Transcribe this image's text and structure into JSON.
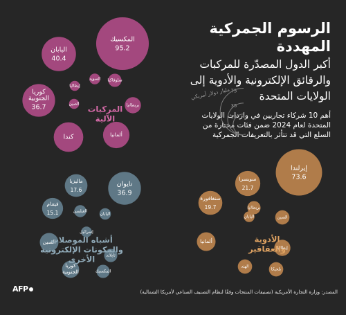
{
  "title": "الرسوم الجمركية المهددة",
  "subtitle": "أكبر الدول المصدّرة للمركبات والرقائق الإلكترونية والأدوية إلى الولايات المتحدة",
  "description": "أهم 10 شركاء تجاريين في واردات الولايات المتحدة لعام 2024 ضمن فئات مختارة من السلع التي قد تتأثر بالتعريفات الجمركية",
  "source": "المصدر: وزارة التجارة الأمريكية (تصنيفات المنتجات وفقًا لنظام التصنيف الصناعي لأمريكا الشمالية)",
  "logo": "AFP",
  "colors": {
    "background": "#262626",
    "vehicles": "#a3487e",
    "chips": "#5f7886",
    "pharma": "#b07c4a",
    "legend_ring": "#7a7a7a"
  },
  "chart_data": {
    "type": "bubble",
    "unit": "مليار دولار أمريكي",
    "legend": {
      "label": "مليار دولار أمريكي",
      "sizes": [
        {
          "label": "75",
          "value": 75
        },
        {
          "label": "35",
          "value": 35
        },
        {
          "label": "15",
          "value": 15
        }
      ]
    },
    "groups": [
      {
        "name": "المركبات الآلية",
        "color": "#a3487e",
        "items": [
          {
            "name": "المكسيك",
            "value": 95.2,
            "value_label": "95.2"
          },
          {
            "name": "اليابان",
            "value": 40.4,
            "value_label": "40.4"
          },
          {
            "name": "كوريا الجنوبية",
            "value": 36.7,
            "value_label": "36.7"
          },
          {
            "name": "كندا",
            "value": 30.0,
            "value_label": ""
          },
          {
            "name": "ألمانيا",
            "value": 24.0,
            "value_label": ""
          },
          {
            "name": "بريطانيا",
            "value": 9.0,
            "value_label": ""
          },
          {
            "name": "سلوفاكيا",
            "value": 6.0,
            "value_label": ""
          },
          {
            "name": "السويد",
            "value": 4.0,
            "value_label": ""
          },
          {
            "name": "إيطاليا",
            "value": 3.5,
            "value_label": ""
          },
          {
            "name": "الصين",
            "value": 3.5,
            "value_label": ""
          }
        ]
      },
      {
        "name": "أشباه الموصلات والمكونات الإلكترونية الأخرى",
        "color": "#5f7886",
        "items": [
          {
            "name": "تايوان",
            "value": 36.9,
            "value_label": "36.9"
          },
          {
            "name": "ماليزيا",
            "value": 17.6,
            "value_label": "17.6"
          },
          {
            "name": "فيتنام",
            "value": 15.1,
            "value_label": "15.1"
          },
          {
            "name": "الصين",
            "value": 12.0,
            "value_label": ""
          },
          {
            "name": "كوريا الجنوبية",
            "value": 10.0,
            "value_label": ""
          },
          {
            "name": "تايلاند",
            "value": 6.0,
            "value_label": ""
          },
          {
            "name": "المكسيك",
            "value": 6.0,
            "value_label": ""
          },
          {
            "name": "الفيليبين",
            "value": 5.0,
            "value_label": ""
          },
          {
            "name": "اليابان",
            "value": 4.5,
            "value_label": ""
          },
          {
            "name": "إسرائيل",
            "value": 4.0,
            "value_label": ""
          }
        ]
      },
      {
        "name": "الأدوية والعقاقير",
        "color": "#b07c4a",
        "items": [
          {
            "name": "إيرلندا",
            "value": 73.6,
            "value_label": "73.6"
          },
          {
            "name": "سويسرا",
            "value": 21.7,
            "value_label": "21.7"
          },
          {
            "name": "سنغافورة",
            "value": 19.7,
            "value_label": "19.7"
          },
          {
            "name": "ألمانيا",
            "value": 12.0,
            "value_label": ""
          },
          {
            "name": "إيطاليا",
            "value": 9.0,
            "value_label": ""
          },
          {
            "name": "الصين",
            "value": 7.0,
            "value_label": ""
          },
          {
            "name": "بريطانيا",
            "value": 6.0,
            "value_label": ""
          },
          {
            "name": "الهند",
            "value": 7.0,
            "value_label": ""
          },
          {
            "name": "بلجيكا",
            "value": 7.0,
            "value_label": ""
          },
          {
            "name": "اليابان",
            "value": 4.0,
            "value_label": ""
          }
        ]
      }
    ]
  }
}
